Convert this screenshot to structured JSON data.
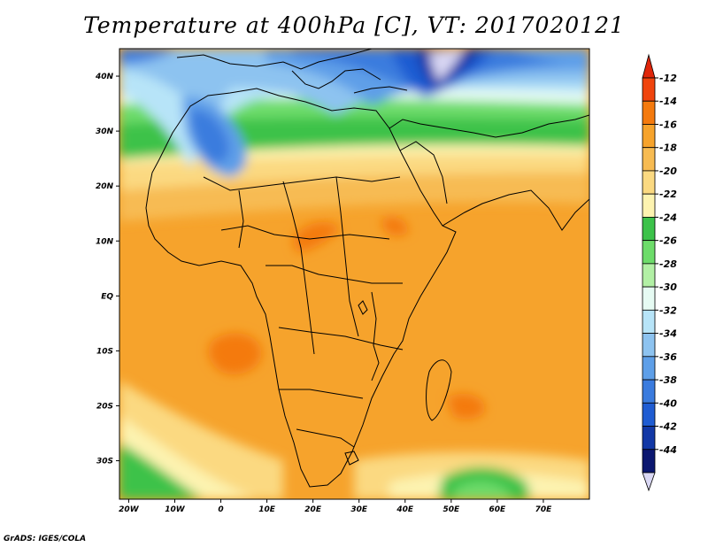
{
  "title": "Temperature at 400hPa [C], VT: 2017020121",
  "credit": "GrADS: IGES/COLA",
  "map": {
    "lon_range": [
      -22,
      80
    ],
    "lat_range": [
      -37,
      45
    ],
    "x_ticks": [
      "20W",
      "10W",
      "0",
      "10E",
      "20E",
      "30E",
      "40E",
      "50E",
      "60E",
      "70E"
    ],
    "y_ticks": [
      "40N",
      "30N",
      "20N",
      "10N",
      "EQ",
      "10S",
      "20S",
      "30S"
    ]
  },
  "legend": {
    "labels": [
      "-12",
      "-14",
      "-16",
      "-18",
      "-20",
      "-22",
      "-24",
      "-26",
      "-28",
      "-30",
      "-32",
      "-34",
      "-36",
      "-38",
      "-40",
      "-42",
      "-44"
    ],
    "colors": [
      "#f0440d",
      "#f47a0e",
      "#f6a32c",
      "#f7bb52",
      "#fbd981",
      "#fdf3b0",
      "#3cc24a",
      "#6ddc6a",
      "#b2f0a5",
      "#e6fbf3",
      "#b7e4f8",
      "#8dc3f0",
      "#5e9fe8",
      "#3a7bde",
      "#1f5cd2",
      "#1238a6",
      "#0b1770"
    ],
    "top_arrow_color": "#e0260a",
    "bottom_arrow_color": "#dad8f4"
  }
}
